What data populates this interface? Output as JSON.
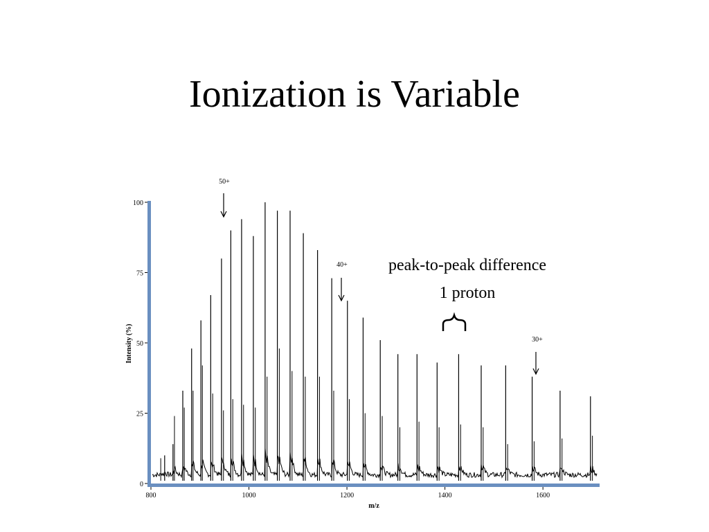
{
  "slide": {
    "title": "Ionization is Variable"
  },
  "chart_data": {
    "type": "line",
    "title": "",
    "xlabel": "m/z",
    "ylabel": "Intensity (%)",
    "xlim": [
      800,
      1710
    ],
    "ylim": [
      0,
      100
    ],
    "x_ticks": [
      800,
      1000,
      1200,
      1400,
      1600
    ],
    "y_ticks": [
      0,
      25,
      50,
      75,
      100
    ],
    "axis_color": "#6a8fc0",
    "line_color": "#000000",
    "series": [
      {
        "main_peaks": [
          {
            "x": 828,
            "y": 10
          },
          {
            "x": 845,
            "y": 14
          },
          {
            "x": 865,
            "y": 33
          },
          {
            "x": 883,
            "y": 48
          },
          {
            "x": 902,
            "y": 58
          },
          {
            "x": 922,
            "y": 67
          },
          {
            "x": 944,
            "y": 80
          },
          {
            "x": 963,
            "y": 90
          },
          {
            "x": 985,
            "y": 94
          },
          {
            "x": 1009,
            "y": 88
          },
          {
            "x": 1033,
            "y": 100
          },
          {
            "x": 1058,
            "y": 97
          },
          {
            "x": 1084,
            "y": 97
          },
          {
            "x": 1111,
            "y": 89
          },
          {
            "x": 1140,
            "y": 83
          },
          {
            "x": 1169,
            "y": 73
          },
          {
            "x": 1201,
            "y": 65
          },
          {
            "x": 1233,
            "y": 59
          },
          {
            "x": 1268,
            "y": 51
          },
          {
            "x": 1304,
            "y": 46
          },
          {
            "x": 1343,
            "y": 46
          },
          {
            "x": 1384,
            "y": 43
          },
          {
            "x": 1428,
            "y": 46
          },
          {
            "x": 1474,
            "y": 42
          },
          {
            "x": 1524,
            "y": 42
          },
          {
            "x": 1578,
            "y": 38
          },
          {
            "x": 1635,
            "y": 33
          },
          {
            "x": 1697,
            "y": 31
          }
        ],
        "adduct_peaks": [
          {
            "x": 820,
            "y": 9
          },
          {
            "x": 848,
            "y": 24
          },
          {
            "x": 868,
            "y": 27
          },
          {
            "x": 886,
            "y": 33
          },
          {
            "x": 905,
            "y": 42
          },
          {
            "x": 926,
            "y": 32
          },
          {
            "x": 948,
            "y": 26
          },
          {
            "x": 967,
            "y": 30
          },
          {
            "x": 989,
            "y": 28
          },
          {
            "x": 1013,
            "y": 27
          },
          {
            "x": 1037,
            "y": 38
          },
          {
            "x": 1062,
            "y": 48
          },
          {
            "x": 1088,
            "y": 40
          },
          {
            "x": 1115,
            "y": 38
          },
          {
            "x": 1144,
            "y": 38
          },
          {
            "x": 1173,
            "y": 33
          },
          {
            "x": 1205,
            "y": 30
          },
          {
            "x": 1237,
            "y": 25
          },
          {
            "x": 1272,
            "y": 24
          },
          {
            "x": 1308,
            "y": 20
          },
          {
            "x": 1347,
            "y": 22
          },
          {
            "x": 1388,
            "y": 20
          },
          {
            "x": 1432,
            "y": 21
          },
          {
            "x": 1478,
            "y": 20
          },
          {
            "x": 1528,
            "y": 14
          },
          {
            "x": 1582,
            "y": 15
          },
          {
            "x": 1639,
            "y": 16
          },
          {
            "x": 1701,
            "y": 17
          }
        ]
      }
    ],
    "annotations": [
      {
        "label": "50+",
        "x": 960,
        "y": 90,
        "arrow": true
      },
      {
        "label": "40+",
        "x": 1200,
        "y": 65,
        "arrow": true
      },
      {
        "label": "30+",
        "x": 1596,
        "y": 38,
        "arrow": true
      },
      {
        "label": "peak-to-peak difference",
        "arrow": false
      },
      {
        "label": "1 proton",
        "arrow": false
      }
    ]
  }
}
